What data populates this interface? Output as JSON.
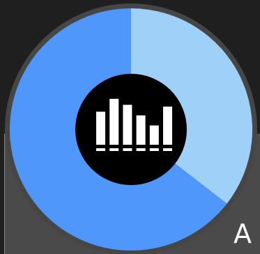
{
  "widget": {
    "name": "storage-usage-donut",
    "corner_letter": "A",
    "center_icon": "bar-chart-icon",
    "colors": {
      "background": "#1f1f1f",
      "ring": "#464646",
      "used": "#4f97fb",
      "free": "#9fd0f7",
      "center": "#000000",
      "icon": "#ffffff"
    },
    "segments": [
      {
        "key": "free",
        "fraction": 0.355
      },
      {
        "key": "used",
        "fraction": 0.645
      }
    ],
    "icon_bars": [
      0.72,
      1.0,
      0.87,
      0.64,
      0.42,
      0.83
    ]
  }
}
